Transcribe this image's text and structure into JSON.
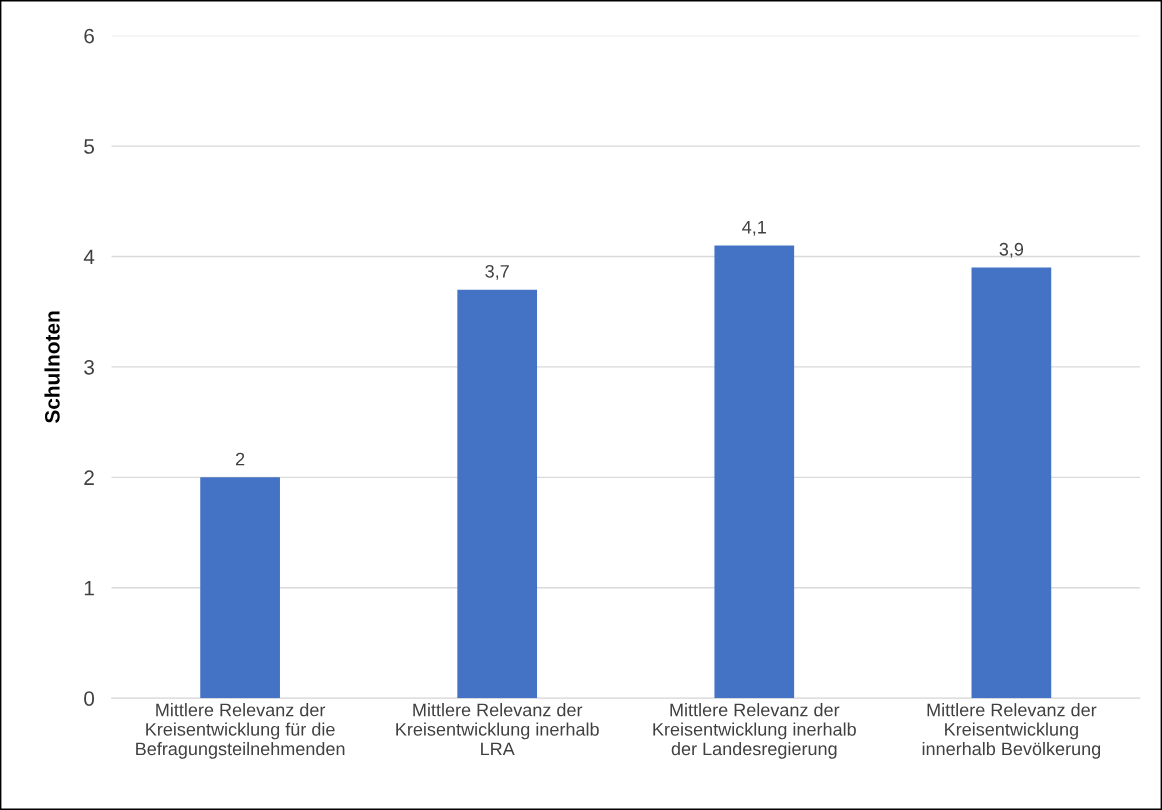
{
  "chart_data": {
    "type": "bar",
    "ylabel": "Schulnoten",
    "categories": [
      "Mittlere Relevanz der\nKreisentwicklung für die\nBefragungsteilnehmenden",
      "Mittlere Relevanz der\nKreisentwicklung inerhalb\nLRA",
      "Mittlere Relevanz der\nKreisentwicklung inerhalb\nder Landesregierung",
      "Mittlere Relevanz der\nKreisentwicklung\ninnerhalb Bevölkerung"
    ],
    "values": [
      2,
      3.7,
      4.1,
      3.9
    ],
    "color": "#4472c4",
    "value_labels": [
      "2",
      "3,7",
      "4,1",
      "3,9"
    ],
    "ylim": [
      0,
      6
    ],
    "yticks": [
      0,
      1,
      2,
      3,
      4,
      5,
      6
    ],
    "grid": "y",
    "legend": false
  }
}
